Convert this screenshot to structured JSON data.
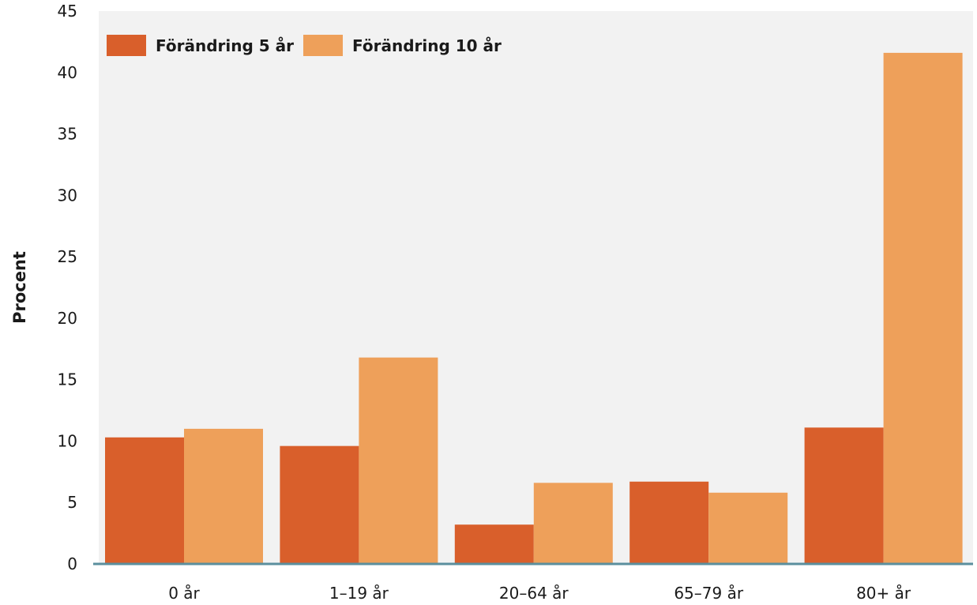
{
  "chart_data": {
    "type": "bar",
    "title": "",
    "xlabel": "",
    "ylabel": "Procent",
    "ylim": [
      0,
      45
    ],
    "yticks": [
      0,
      5,
      10,
      15,
      20,
      25,
      30,
      35,
      40,
      45
    ],
    "categories": [
      "0 år",
      "1–19 år",
      "20–64 år",
      "65–79 år",
      "80+ år"
    ],
    "series": [
      {
        "name": "Förändring 5 år",
        "color": "#d95f2b",
        "values": [
          10.3,
          9.6,
          3.2,
          6.7,
          11.1
        ]
      },
      {
        "name": "Förändring 10 år",
        "color": "#eea05a",
        "values": [
          11.0,
          16.8,
          6.6,
          5.8,
          41.6
        ]
      }
    ],
    "grid": false,
    "legend": "top-left",
    "background": "#f2f2f2"
  }
}
